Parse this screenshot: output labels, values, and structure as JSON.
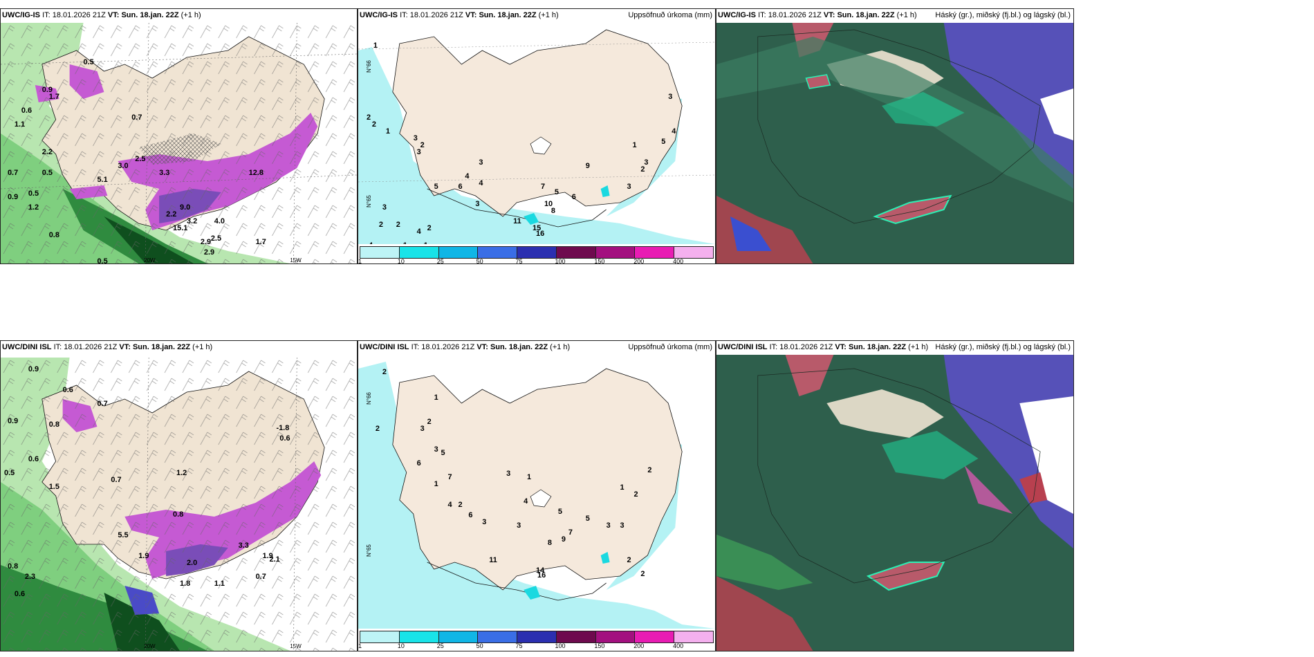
{
  "panels": {
    "top_left": {
      "model": "UWC/IG-IS",
      "it_label": "IT:",
      "it": "18.01.2026 21Z",
      "vt_label": "VT:",
      "vt": "Sun. 18.jan. 22Z",
      "lead": "(+1 h)"
    },
    "top_mid": {
      "model": "UWC/IG-IS",
      "it_label": "IT:",
      "it": "18.01.2026 21Z",
      "vt_label": "VT:",
      "vt": "Sun. 18.jan. 22Z",
      "lead": "(+1 h)",
      "title": "Uppsöfnuð úrkoma (mm)"
    },
    "top_right": {
      "model": "UWC/IG-IS",
      "it_label": "IT:",
      "it": "18.01.2026 21Z",
      "vt_label": "VT:",
      "vt": "Sun. 18.jan. 22Z",
      "lead": "(+1 h)",
      "title": "Háský (gr.), miðský (fj.bl.) og lágský (bl.)"
    },
    "bot_left": {
      "model": "UWC/DINI ISL",
      "it_label": "IT:",
      "it": "18.01.2026 21Z",
      "vt_label": "VT:",
      "vt": "Sun. 18.jan. 22Z",
      "lead": "(+1 h)"
    },
    "bot_mid": {
      "model": "UWC/DINI ISL",
      "it_label": "IT:",
      "it": "18.01.2026 21Z",
      "vt_label": "VT:",
      "vt": "Sun. 18.jan. 22Z",
      "lead": "(+1 h)",
      "title": "Uppsöfnuð úrkoma (mm)"
    },
    "bot_right": {
      "model": "UWC/DINI ISL",
      "it_label": "IT:",
      "it": "18.01.2026 21Z",
      "vt_label": "VT:",
      "vt": "Sun. 18.jan. 22Z",
      "lead": "(+1 h)",
      "title": "Háský (gr.), miðský (fj.bl.) og lágský (bl.)"
    }
  },
  "colorbar": {
    "labels": [
      "1",
      "10",
      "25",
      "50",
      "75",
      "100",
      "150",
      "200",
      "400"
    ],
    "colors": [
      "#bdf4f6",
      "#19e3e8",
      "#10b6e6",
      "#3a6ee6",
      "#2b2fb0",
      "#6e0a4e",
      "#a3107f",
      "#e81cb3",
      "#f4b0ee"
    ]
  },
  "map_labels": {
    "lon_20w": "20W",
    "lon_15w": "15W",
    "lat_66n": "N°66",
    "lat_65n": "N°65"
  },
  "top_left_values": [
    "0.7",
    "0.9",
    "1.1",
    "2.2",
    "0.6",
    "0.7",
    "0.5",
    "0.9",
    "1.2",
    "0.8",
    "0.5",
    "1.7",
    "3.0",
    "2.5",
    "3.3",
    "5.1",
    "4.0",
    "3.2",
    "2.2",
    "2.5",
    "2.9",
    "2.9",
    "0.5",
    "1.7",
    "12.8",
    "15.1",
    "9.0",
    "0.5"
  ],
  "bot_left_values": [
    "0.9",
    "0.6",
    "0.9",
    "0.8",
    "0.6",
    "0.5",
    "1.5",
    "0.7",
    "0.7",
    "0.8",
    "1.2",
    "5.5",
    "1.9",
    "1.8",
    "1.1",
    "1.9",
    "2.1",
    "0.7",
    "3.3",
    "2.0",
    "0.8",
    "2.3",
    "0.6",
    "-1.8",
    "0.6"
  ],
  "top_mid_values": [
    "1",
    "2",
    "2",
    "1",
    "3",
    "2",
    "3",
    "5",
    "6",
    "4",
    "3",
    "4",
    "3",
    "4",
    "2",
    "3",
    "2",
    "1",
    "2",
    "1",
    "4",
    "10",
    "8",
    "11",
    "7",
    "5",
    "6",
    "9",
    "3",
    "4",
    "5",
    "3",
    "1",
    "3",
    "2",
    "15",
    "16"
  ],
  "bot_mid_values": [
    "2",
    "2",
    "1",
    "2",
    "3",
    "6",
    "5",
    "1",
    "3",
    "7",
    "4",
    "2",
    "3",
    "1",
    "5",
    "4",
    "6",
    "3",
    "11",
    "3",
    "8",
    "9",
    "7",
    "5",
    "3",
    "3",
    "1",
    "2",
    "2",
    "2",
    "14",
    "16",
    "2"
  ]
}
